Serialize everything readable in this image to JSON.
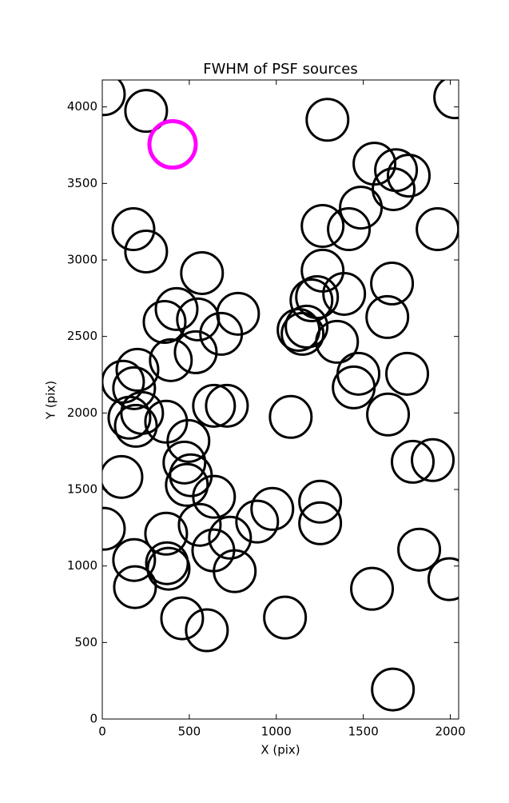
{
  "chart_data": {
    "type": "scatter",
    "title": "FWHM of PSF sources",
    "x_label": "X (pix)",
    "y_label": "Y (pix)",
    "xlim": [
      0,
      2048
    ],
    "ylim": [
      0,
      4176
    ],
    "xticks": [
      0,
      500,
      1000,
      1500,
      2000
    ],
    "yticks": [
      0,
      500,
      1000,
      1500,
      2000,
      2500,
      3000,
      3500,
      4000
    ],
    "series": [
      {
        "color": "#000000",
        "x": [
          9,
          252,
          1294,
          2028,
          1564,
          1688,
          1761,
          1674,
          1486,
          1266,
          1417,
          1927,
          179,
          252,
          573,
          1266,
          1665,
          1390,
          1234,
          1202,
          427,
          358,
          550,
          780,
          683,
          1174,
          1128,
          1151,
          1638,
          1349,
          394,
          537,
          202,
          119,
          1472,
          1752,
          1445,
          183,
          229,
          156,
          193,
          367,
          642,
          716,
          1083,
          1642,
          495,
          472,
          509,
          486,
          110,
          1784,
          1899,
          642,
          1252,
          977,
          1252,
          890,
          560,
          9,
          367,
          734,
          638,
          183,
          372,
          381,
          761,
          1821,
          1995,
          188,
          1550,
          459,
          1050,
          601,
          1670
        ],
        "values": [
          4083,
          3974,
          3916,
          4063,
          3629,
          3587,
          3551,
          3462,
          3342,
          3222,
          3201,
          3201,
          3201,
          3055,
          2914,
          2930,
          2846,
          2778,
          2757,
          2736,
          2679,
          2595,
          2611,
          2648,
          2517,
          2564,
          2543,
          2517,
          2627,
          2465,
          2345,
          2397,
          2282,
          2204,
          2256,
          2256,
          2167,
          2162,
          2000,
          1969,
          1916,
          1943,
          2047,
          2047,
          1974,
          1990,
          1817,
          1676,
          1593,
          1530,
          1582,
          1681,
          1692,
          1452,
          1420,
          1373,
          1279,
          1290,
          1269,
          1243,
          1211,
          1185,
          1102,
          1039,
          1018,
          982,
          966,
          1107,
          914,
          862,
          851,
          658,
          663,
          580,
          193
        ]
      },
      {
        "color": "#ff00ff",
        "x": [
          404
        ],
        "values": [
          3755
        ]
      }
    ]
  }
}
